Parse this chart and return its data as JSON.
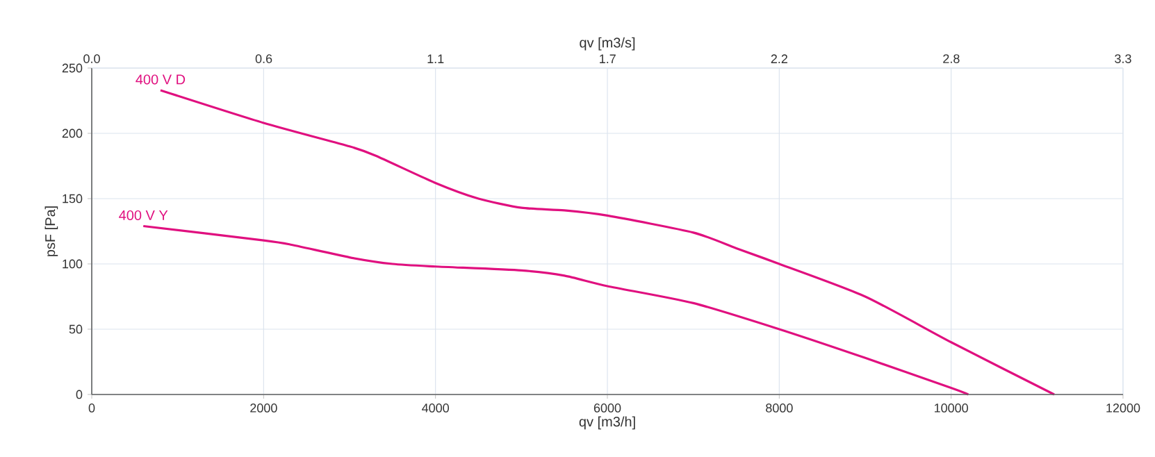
{
  "chart_data": {
    "type": "line",
    "xlabel": "qv [m3/h]",
    "ylabel": "psF [Pa]",
    "x2label": "qv [m3/s]",
    "xlim": [
      0,
      12000
    ],
    "xticks": [
      0,
      2000,
      4000,
      6000,
      8000,
      10000,
      12000
    ],
    "ylim": [
      0,
      250
    ],
    "yticks": [
      0,
      50,
      100,
      150,
      200,
      250
    ],
    "x2lim": [
      0,
      3.333
    ],
    "x2ticks": [
      {
        "value": 0,
        "label": "0.0"
      },
      {
        "value": 0.556,
        "label": "0.6"
      },
      {
        "value": 1.111,
        "label": "1.1"
      },
      {
        "value": 1.667,
        "label": "1.7"
      },
      {
        "value": 2.222,
        "label": "2.2"
      },
      {
        "value": 2.778,
        "label": "2.8"
      },
      {
        "value": 3.333,
        "label": "3.3"
      }
    ],
    "grid": true,
    "line_style": "solid",
    "series": [
      {
        "name": "400 V D",
        "color": "#e0107f",
        "x": [
          800,
          2000,
          3000,
          3300,
          4000,
          4500,
          5000,
          5500,
          6000,
          7000,
          7500,
          8000,
          9000,
          10000,
          11200
        ],
        "values": [
          233,
          208,
          190,
          183,
          162,
          150,
          143,
          141,
          137,
          124,
          112,
          100,
          75,
          40,
          0
        ]
      },
      {
        "name": "400 V Y",
        "color": "#e0107f",
        "x": [
          600,
          2000,
          2300,
          3000,
          3500,
          4000,
          5000,
          5500,
          6000,
          7000,
          8000,
          9000,
          10000,
          10200
        ],
        "values": [
          129,
          118,
          115,
          105,
          100,
          98,
          95,
          91,
          83,
          70,
          50,
          28,
          5,
          0
        ]
      }
    ]
  }
}
